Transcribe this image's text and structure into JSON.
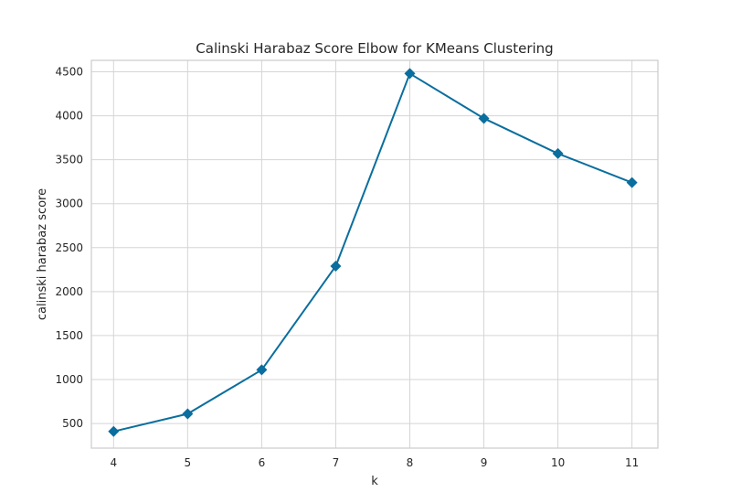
{
  "chart_data": {
    "type": "line",
    "title": "Calinski Harabaz Score Elbow for KMeans Clustering",
    "xlabel": "k",
    "ylabel": "calinski harabaz score",
    "x": [
      4,
      5,
      6,
      7,
      8,
      9,
      10,
      11
    ],
    "series": [
      {
        "values": [
          410,
          610,
          1110,
          2290,
          4480,
          3970,
          3570,
          3240
        ]
      }
    ],
    "xlim": [
      3.7,
      11.35
    ],
    "ylim": [
      220,
      4630
    ],
    "xticks": [
      "4",
      "5",
      "6",
      "7",
      "8",
      "9",
      "10",
      "11"
    ],
    "yticks": [
      "500",
      "1000",
      "1500",
      "2000",
      "2500",
      "3000",
      "3500",
      "4000",
      "4500"
    ],
    "grid": true,
    "marker": "diamond",
    "line_color": "#0a6e9e",
    "grid_color": "#d5d5d5"
  }
}
